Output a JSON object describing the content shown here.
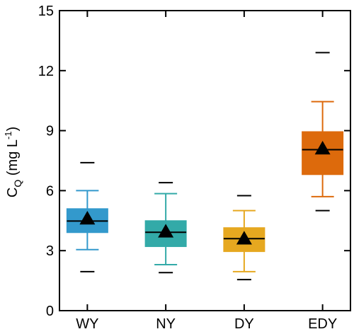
{
  "chart_data": {
    "type": "box",
    "title": "",
    "xlabel": "",
    "ylabel": {
      "main": "C",
      "subscript": "Q",
      "unit_prefix": " (mg L",
      "superscript": "-1",
      "unit_suffix": ")"
    },
    "ylim": [
      0,
      15
    ],
    "yticks": [
      0,
      3,
      6,
      9,
      12,
      15
    ],
    "ytick_labels": [
      "0",
      "3",
      "6",
      "9",
      "12",
      "15"
    ],
    "grid": false,
    "legend": "none",
    "categories": [
      "WY",
      "NY",
      "DY",
      "EDY"
    ],
    "colors": [
      "#3399cc",
      "#33aaa8",
      "#e6a820",
      "#dd6a0c"
    ],
    "boxes": [
      {
        "name": "WY",
        "whisker_low": 3.05,
        "q1": 3.9,
        "median": 4.48,
        "q3": 5.1,
        "whisker_high": 6.0,
        "mean": 4.6,
        "outlier_low": 1.95,
        "outlier_high": 7.4
      },
      {
        "name": "NY",
        "whisker_low": 2.3,
        "q1": 3.2,
        "median": 3.92,
        "q3": 4.5,
        "whisker_high": 5.85,
        "mean": 3.95,
        "outlier_low": 1.9,
        "outlier_high": 6.4
      },
      {
        "name": "DY",
        "whisker_low": 1.95,
        "q1": 2.95,
        "median": 3.6,
        "q3": 4.15,
        "whisker_high": 5.0,
        "mean": 3.6,
        "outlier_low": 1.55,
        "outlier_high": 5.75
      },
      {
        "name": "EDY",
        "whisker_low": 5.7,
        "q1": 6.8,
        "median": 8.05,
        "q3": 8.95,
        "whisker_high": 10.45,
        "mean": 8.1,
        "outlier_low": 5.0,
        "outlier_high": 12.9
      }
    ]
  }
}
